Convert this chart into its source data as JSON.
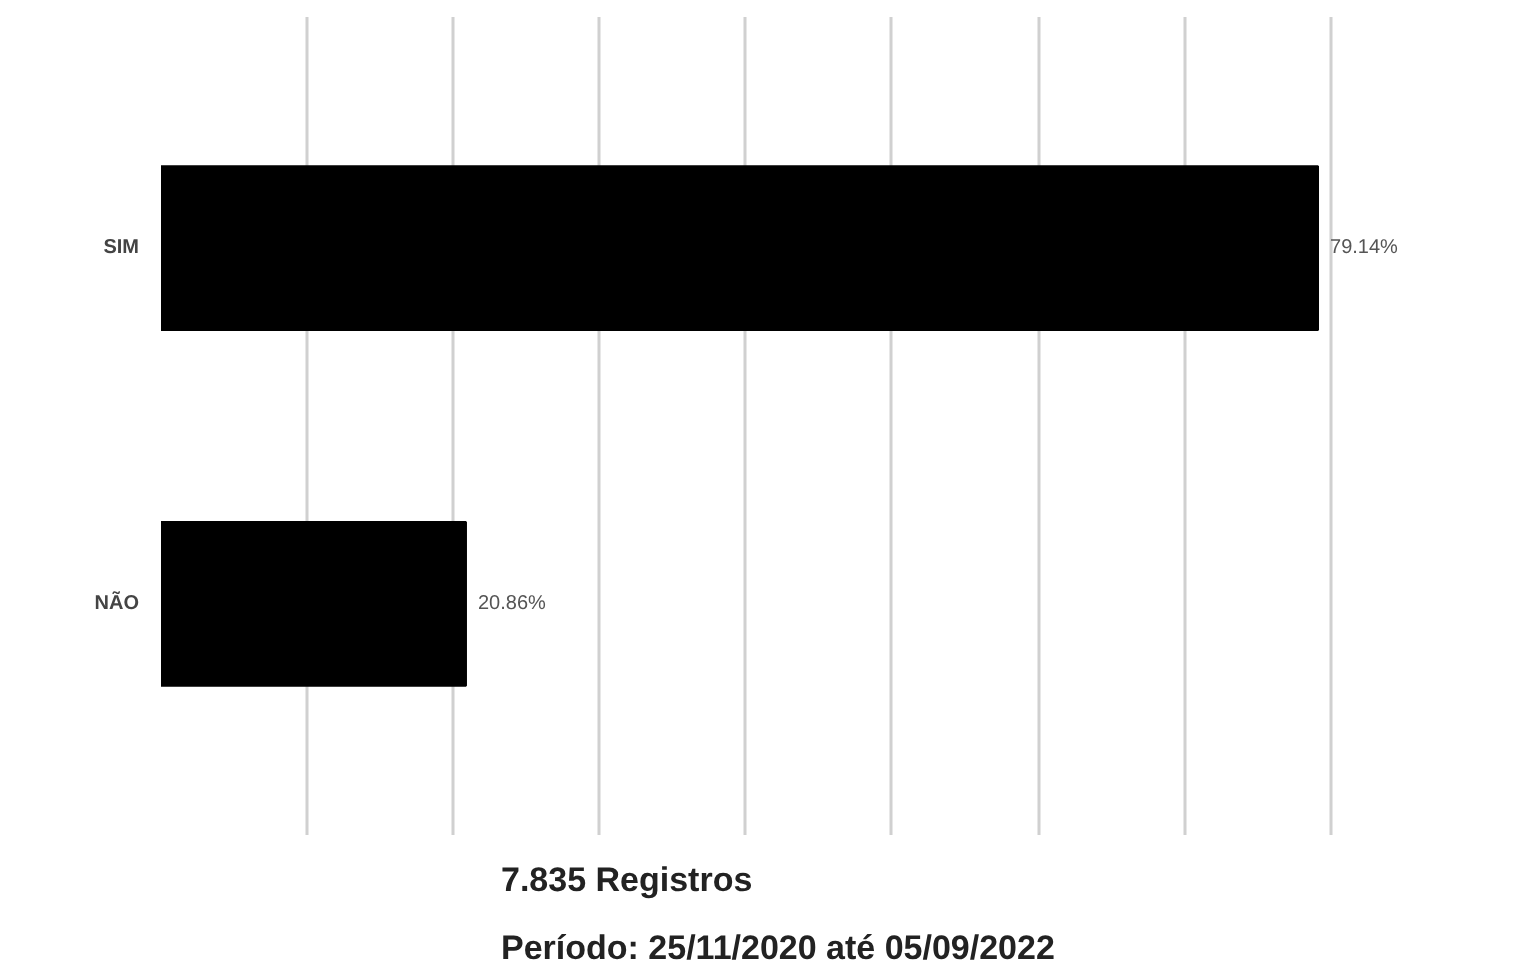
{
  "chart_data": {
    "type": "bar",
    "orientation": "horizontal",
    "categories": [
      "SIM",
      "NÃO"
    ],
    "values": [
      79.14,
      20.86
    ],
    "value_labels": [
      "79.14%",
      "20.86%"
    ],
    "color": "#000000",
    "grid": "x",
    "tick_labels": "y",
    "annotations": [
      "7.835  Registros",
      "Período: 25/11/2020 até 05/09/2022"
    ]
  }
}
